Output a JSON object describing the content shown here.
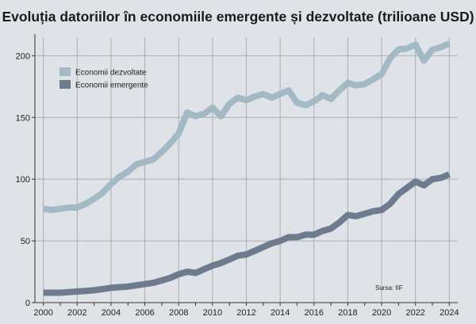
{
  "chart_data": {
    "type": "line",
    "title": "Evoluția datoriilor în economiile emergente și dezvoltate (trilioane USD)",
    "source": "Sursa: IIF",
    "xlim": [
      1999.5,
      2024.5
    ],
    "ylim": [
      0,
      215
    ],
    "x_ticks": [
      2000,
      2002,
      2004,
      2006,
      2008,
      2010,
      2012,
      2014,
      2016,
      2018,
      2020,
      2022,
      2024
    ],
    "y_ticks": [
      0,
      50,
      100,
      150,
      200
    ],
    "grid": true,
    "legend_position": "top-left",
    "colors": {
      "background": "#dfe3e7",
      "developed": "#a3bac6",
      "emerging": "#6e7a8e",
      "grid": "#a9adb1"
    },
    "series": [
      {
        "name": "Economii dezvoltate",
        "color": "#a3bac6",
        "x": [
          2000.0,
          2000.5,
          2001.0,
          2001.5,
          2002.0,
          2002.5,
          2003.0,
          2003.5,
          2004.0,
          2004.5,
          2005.0,
          2005.5,
          2006.0,
          2006.5,
          2007.0,
          2007.5,
          2008.0,
          2008.5,
          2009.0,
          2009.5,
          2010.0,
          2010.5,
          2011.0,
          2011.5,
          2012.0,
          2012.5,
          2013.0,
          2013.5,
          2014.0,
          2014.5,
          2015.0,
          2015.5,
          2016.0,
          2016.5,
          2017.0,
          2017.5,
          2018.0,
          2018.5,
          2019.0,
          2019.5,
          2020.0,
          2020.5,
          2021.0,
          2021.5,
          2022.0,
          2022.5,
          2023.0,
          2023.5,
          2024.0
        ],
        "values": [
          76,
          75,
          76,
          77,
          77,
          80,
          84,
          89,
          96,
          102,
          106,
          112,
          114,
          116,
          122,
          129,
          137,
          154,
          151,
          153,
          158,
          151,
          161,
          166,
          164,
          167,
          169,
          166,
          169,
          172,
          162,
          160,
          163,
          168,
          165,
          172,
          178,
          176,
          177,
          181,
          185,
          198,
          205,
          206,
          209,
          196,
          205,
          207,
          210
        ]
      },
      {
        "name": "Economii emergente",
        "color": "#6e7a8e",
        "x": [
          2000.0,
          2000.5,
          2001.0,
          2001.5,
          2002.0,
          2002.5,
          2003.0,
          2003.5,
          2004.0,
          2004.5,
          2005.0,
          2005.5,
          2006.0,
          2006.5,
          2007.0,
          2007.5,
          2008.0,
          2008.5,
          2009.0,
          2009.5,
          2010.0,
          2010.5,
          2011.0,
          2011.5,
          2012.0,
          2012.5,
          2013.0,
          2013.5,
          2014.0,
          2014.5,
          2015.0,
          2015.5,
          2016.0,
          2016.5,
          2017.0,
          2017.5,
          2018.0,
          2018.5,
          2019.0,
          2019.5,
          2020.0,
          2020.5,
          2021.0,
          2021.5,
          2022.0,
          2022.5,
          2023.0,
          2023.5,
          2024.0
        ],
        "values": [
          8,
          8,
          8,
          8.5,
          9,
          9.5,
          10,
          11,
          12,
          12.5,
          13,
          14,
          15,
          16,
          18,
          20,
          23,
          25,
          24,
          27,
          30,
          32,
          35,
          38,
          39,
          42,
          45,
          48,
          50,
          53,
          53,
          55,
          55,
          58,
          60,
          65,
          71,
          70,
          72,
          74,
          75,
          80,
          88,
          93,
          98,
          95,
          100,
          101,
          104
        ]
      }
    ]
  }
}
